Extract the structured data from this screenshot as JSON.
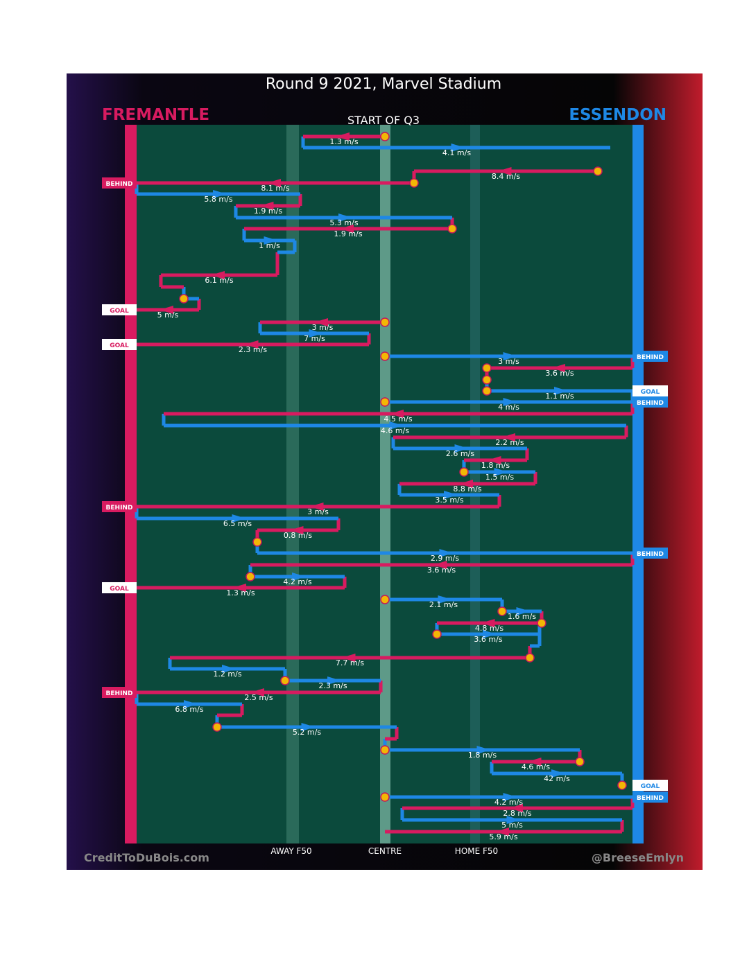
{
  "header": {
    "title": "Round 9 2021, Marvel Stadium",
    "left_team": "FREMANTLE",
    "right_team": "ESSENDON",
    "subtitle": "START OF Q3"
  },
  "chains": [
    {
      "label": "1.3 m/s"
    },
    {
      "label": "4.1 m/s"
    },
    {
      "label": "8.4 m/s"
    },
    {
      "label": "8.1 m/s",
      "outcome": "BEHIND"
    },
    {
      "label": "5.8 m/s"
    },
    {
      "label": "1.9 m/s"
    },
    {
      "label": "5.3 m/s"
    },
    {
      "label": "1.9 m/s"
    },
    {
      "label": "1 m/s"
    },
    {
      "label": "6.1 m/s"
    },
    {
      "label": "5 m/s",
      "outcome": "GOAL"
    },
    {
      "label": "3 m/s"
    },
    {
      "label": "7 m/s"
    },
    {
      "label": "2.3 m/s",
      "outcome": "GOAL"
    },
    {
      "label": "3 m/s",
      "outcome": "BEHIND"
    },
    {
      "label": "3.6 m/s"
    },
    {
      "label": "1.1 m/s",
      "outcome": "GOAL"
    },
    {
      "label": "4 m/s",
      "outcome": "BEHIND"
    },
    {
      "label": "4.5 m/s"
    },
    {
      "label": "4.6 m/s"
    },
    {
      "label": "2.2 m/s"
    },
    {
      "label": "2.6 m/s"
    },
    {
      "label": "1.8 m/s"
    },
    {
      "label": "1.5 m/s"
    },
    {
      "label": "8.8 m/s"
    },
    {
      "label": "3.5 m/s"
    },
    {
      "label": "3 m/s",
      "outcome": "BEHIND"
    },
    {
      "label": "6.5 m/s"
    },
    {
      "label": "0.8 m/s"
    },
    {
      "label": "2.9 m/s",
      "outcome": "BEHIND"
    },
    {
      "label": "3.6 m/s"
    },
    {
      "label": "4.2 m/s"
    },
    {
      "label": "1.3 m/s",
      "outcome": "GOAL"
    },
    {
      "label": "2.1 m/s"
    },
    {
      "label": "1.6 m/s"
    },
    {
      "label": "4.8 m/s"
    },
    {
      "label": "3.6 m/s"
    },
    {
      "label": "7.7 m/s"
    },
    {
      "label": "1.2 m/s"
    },
    {
      "label": "2.3 m/s"
    },
    {
      "label": "2.5 m/s",
      "outcome": "BEHIND"
    },
    {
      "label": "6.8 m/s"
    },
    {
      "label": "5.2 m/s"
    },
    {
      "label": "1.8 m/s"
    },
    {
      "label": "4.6 m/s"
    },
    {
      "label": "42 m/s"
    },
    {
      "outcome": "GOAL"
    },
    {
      "label": "4.2 m/s",
      "outcome": "BEHIND"
    },
    {
      "label": "2.8 m/s"
    },
    {
      "label": "5 m/s"
    },
    {
      "label": "5.9 m/s"
    }
  ],
  "field_labels": [
    "AWAY F50",
    "CENTRE",
    "HOME F50"
  ],
  "footer": {
    "left": "CreditToDuBois.com",
    "right": "@BreeseEmlyn"
  }
}
